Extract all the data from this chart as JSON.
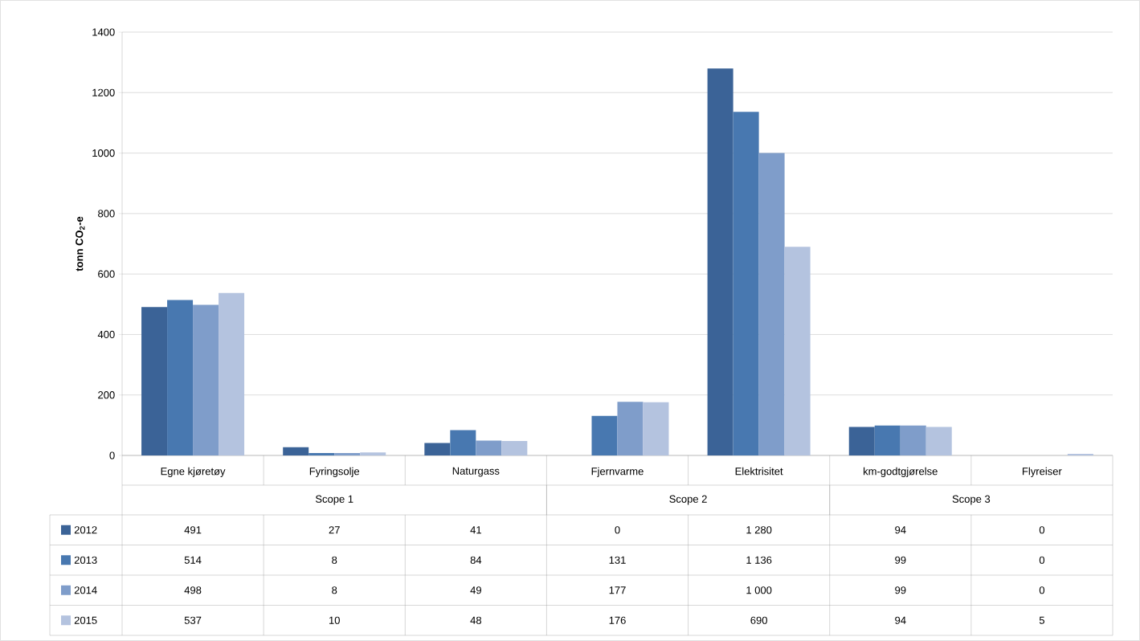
{
  "chart_data": {
    "type": "bar",
    "ylabel": "tonn CO$_{2}$-e",
    "categories": [
      "Egne kjøretøy",
      "Fyringsolje",
      "Naturgass",
      "Fjernvarme",
      "Elektrisitet",
      "km-godtgjørelse",
      "Flyreiser"
    ],
    "annotations": [
      "Scope 1",
      "Scope 2",
      "Scope 3"
    ],
    "series": [
      {
        "name": "2012",
        "color": "#3b6397",
        "values": [
          491,
          27,
          41,
          0,
          1280,
          94,
          0
        ],
        "value_labels": [
          "491",
          "27",
          "41",
          "0",
          "1 280",
          "94",
          "0"
        ]
      },
      {
        "name": "2013",
        "color": "#4878b0",
        "values": [
          514,
          8,
          84,
          131,
          1136,
          99,
          0
        ],
        "value_labels": [
          "514",
          "8",
          "84",
          "131",
          "1 136",
          "99",
          "0"
        ]
      },
      {
        "name": "2014",
        "color": "#7f9dca",
        "values": [
          498,
          8,
          49,
          177,
          1000,
          99,
          0
        ],
        "value_labels": [
          "498",
          "8",
          "49",
          "177",
          "1 000",
          "99",
          "0"
        ]
      },
      {
        "name": "2015",
        "color": "#b4c3df",
        "values": [
          537,
          10,
          48,
          176,
          690,
          94,
          5
        ],
        "value_labels": [
          "537",
          "10",
          "48",
          "176",
          "690",
          "94",
          "5"
        ]
      }
    ],
    "ylim": [
      0,
      1400
    ],
    "yticks": [
      0,
      200,
      400,
      600,
      800,
      1000,
      1200,
      1400
    ],
    "grid": "y",
    "legend": "bottom"
  }
}
